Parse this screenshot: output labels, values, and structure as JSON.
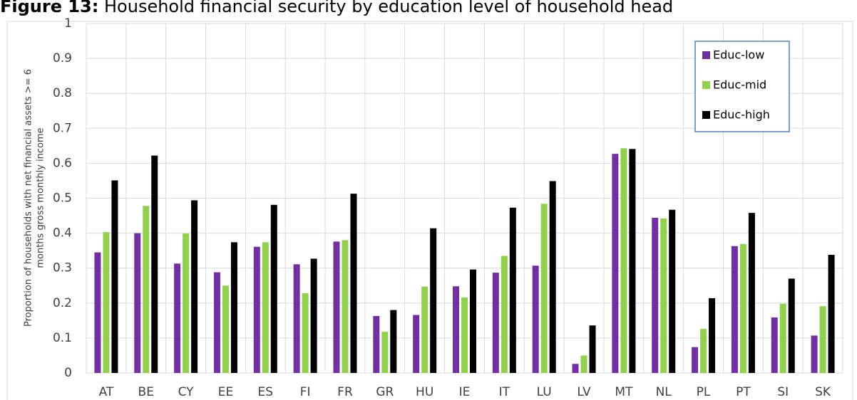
{
  "chart_data": {
    "type": "bar",
    "title_label": "Figure 13:",
    "title": "Household financial security by education level of household head",
    "y_label": [
      "Proportion of households with net financial assets >= 6",
      "months gross monthly income"
    ],
    "categories": [
      "AT",
      "BE",
      "CY",
      "EE",
      "ES",
      "FI",
      "FR",
      "GR",
      "HU",
      "IE",
      "IT",
      "LU",
      "LV",
      "MT",
      "NL",
      "PL",
      "PT",
      "SI",
      "SK"
    ],
    "series": [
      {
        "name": "Educ-low",
        "color": "#7030a0",
        "values": [
          0.345,
          0.4,
          0.313,
          0.288,
          0.361,
          0.311,
          0.376,
          0.163,
          0.166,
          0.248,
          0.287,
          0.307,
          0.026,
          0.627,
          0.444,
          0.074,
          0.363,
          0.159,
          0.107
        ]
      },
      {
        "name": "Educ-mid",
        "color": "#92d050",
        "values": [
          0.403,
          0.478,
          0.399,
          0.25,
          0.374,
          0.228,
          0.38,
          0.118,
          0.247,
          0.216,
          0.335,
          0.484,
          0.05,
          0.643,
          0.442,
          0.126,
          0.369,
          0.198,
          0.191
        ]
      },
      {
        "name": "Educ-high",
        "color": "#000000",
        "values": [
          0.551,
          0.622,
          0.494,
          0.374,
          0.481,
          0.327,
          0.513,
          0.18,
          0.414,
          0.296,
          0.473,
          0.549,
          0.136,
          0.641,
          0.467,
          0.214,
          0.458,
          0.27,
          0.338
        ]
      }
    ],
    "ylim": [
      0,
      1
    ],
    "yticks": [
      0,
      0.1,
      0.2,
      0.3,
      0.4,
      0.5,
      0.6,
      0.7,
      0.8,
      0.9,
      1
    ],
    "grid": true,
    "legend": "top-right"
  }
}
